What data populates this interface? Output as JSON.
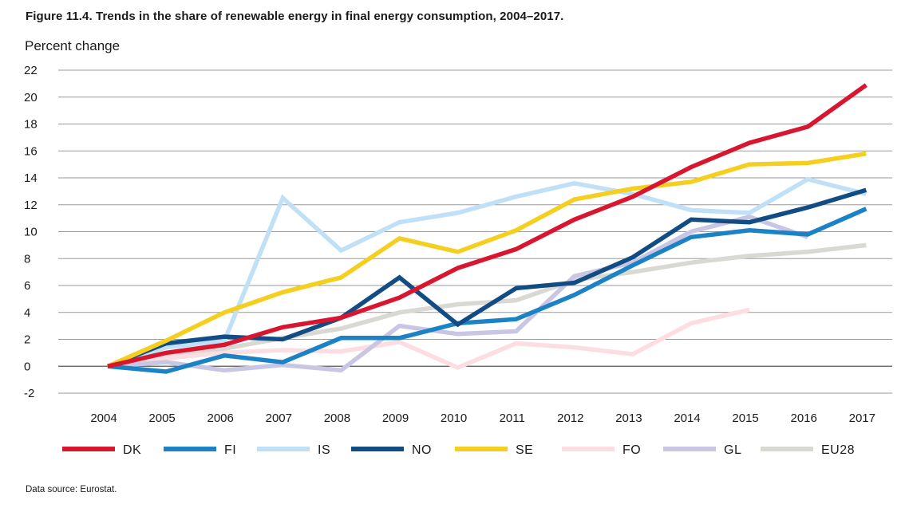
{
  "figure": {
    "title": "Figure 11.4. Trends in the share of renewable energy in final energy consumption, 2004–2017.",
    "source": "Data source: Eurostat."
  },
  "chart_data": {
    "type": "line",
    "title": "Figure 11.4. Trends in the share of renewable energy in final energy consumption, 2004–2017.",
    "ylabel": "Percent change",
    "xlabel": "",
    "ylim": [
      -2,
      22
    ],
    "yticks": [
      -2,
      0,
      2,
      4,
      6,
      8,
      10,
      12,
      14,
      16,
      18,
      20,
      22
    ],
    "grid": "horizontal",
    "legend": "bottom",
    "x": [
      "2004",
      "2005",
      "2006",
      "2007",
      "2008",
      "2009",
      "2010",
      "2011",
      "2012",
      "2013",
      "2014",
      "2015",
      "2016",
      "2017"
    ],
    "series": [
      {
        "name": "EU28",
        "color": "#d9d8d3",
        "values": [
          0,
          0.7,
          1.3,
          2.1,
          2.8,
          4.0,
          4.6,
          4.9,
          6.4,
          7.0,
          7.7,
          8.2,
          8.5,
          9.0
        ]
      },
      {
        "name": "FO",
        "color": "#fbdde2",
        "values": [
          0,
          0.6,
          1.0,
          1.2,
          1.1,
          1.8,
          -0.1,
          1.7,
          1.4,
          0.9,
          3.2,
          4.2,
          null,
          null
        ]
      },
      {
        "name": "GL",
        "color": "#c8c6e3",
        "values": [
          0,
          0.3,
          -0.3,
          0.1,
          -0.3,
          3.0,
          2.4,
          2.6,
          6.7,
          7.7,
          10.0,
          11.1,
          9.6,
          null
        ]
      },
      {
        "name": "IS",
        "color": "#bfe0f6",
        "values": [
          0,
          1.4,
          1.9,
          12.5,
          8.6,
          10.7,
          11.4,
          12.6,
          13.6,
          12.8,
          11.6,
          11.4,
          13.9,
          12.8
        ]
      },
      {
        "name": "FI",
        "color": "#1b82c5",
        "values": [
          0,
          -0.4,
          0.8,
          0.3,
          2.1,
          2.1,
          3.2,
          3.5,
          5.3,
          7.5,
          9.6,
          10.1,
          9.8,
          11.7
        ]
      },
      {
        "name": "NO",
        "color": "#124c84",
        "values": [
          0,
          1.7,
          2.2,
          2.0,
          3.6,
          6.6,
          3.1,
          5.8,
          6.2,
          8.1,
          10.9,
          10.7,
          11.8,
          13.1
        ]
      },
      {
        "name": "SE",
        "color": "#f5cf1f",
        "values": [
          0,
          1.9,
          4.0,
          5.5,
          6.6,
          9.5,
          8.5,
          10.1,
          12.4,
          13.2,
          13.7,
          15.0,
          15.1,
          15.8
        ]
      },
      {
        "name": "DK",
        "color": "#d9162f",
        "values": [
          0,
          1.0,
          1.6,
          2.9,
          3.6,
          5.1,
          7.3,
          8.7,
          10.9,
          12.6,
          14.8,
          16.6,
          17.8,
          20.9
        ]
      }
    ],
    "legend_order": [
      "DK",
      "FI",
      "IS",
      "NO",
      "SE",
      "FO",
      "GL",
      "EU28"
    ]
  }
}
